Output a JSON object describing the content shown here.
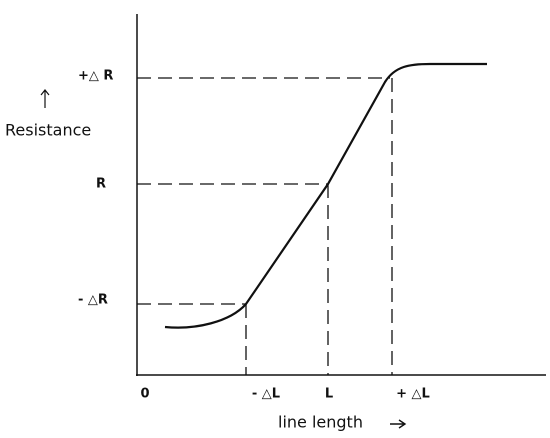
{
  "axis_labels": {
    "y": "Resistance",
    "x": "line length"
  },
  "y_labels": [
    "+△ R",
    "R",
    "- △R"
  ],
  "x_labels": [
    "0",
    "- △L",
    "L",
    "+ △L"
  ]
}
